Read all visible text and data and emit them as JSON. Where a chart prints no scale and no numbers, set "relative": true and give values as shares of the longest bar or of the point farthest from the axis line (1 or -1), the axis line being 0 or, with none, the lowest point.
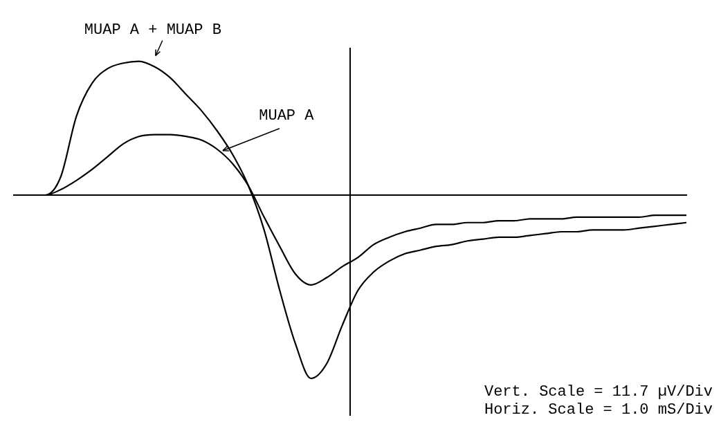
{
  "chart_data": {
    "type": "line",
    "relative": true,
    "grid": false,
    "legend": false,
    "marker": "none",
    "line_style": "solid",
    "categories": [
      null,
      null,
      null,
      null,
      null,
      null,
      null,
      null,
      null,
      null,
      null,
      null,
      null,
      null,
      null,
      null,
      null,
      null,
      null,
      null,
      null,
      null,
      null,
      null,
      null,
      null,
      null,
      null,
      null,
      null,
      null,
      null,
      null,
      null,
      null,
      null,
      null,
      null,
      null,
      null,
      null,
      null,
      null,
      null
    ],
    "series": [
      {
        "name": "MUAP A + MUAP B",
        "color": "#000000",
        "values": [
          0,
          0,
          0,
          0.1,
          0.43,
          0.61,
          0.69,
          0.72,
          0.73,
          0.7,
          0.64,
          0.55,
          0.46,
          0.35,
          0.22,
          0.05,
          -0.19,
          -0.52,
          -0.81,
          -1,
          -0.92,
          -0.71,
          -0.52,
          -0.42,
          -0.36,
          -0.32,
          -0.3,
          -0.28,
          -0.27,
          -0.25,
          -0.24,
          -0.23,
          -0.23,
          -0.22,
          -0.21,
          -0.2,
          -0.2,
          -0.19,
          -0.19,
          -0.19,
          -0.18,
          -0.17,
          -0.16,
          -0.15
        ]
      },
      {
        "name": "MUAP A",
        "color": "#000000",
        "values": [
          0,
          0,
          0,
          0.03,
          0.08,
          0.14,
          0.21,
          0.28,
          0.32,
          0.33,
          0.33,
          0.32,
          0.3,
          0.25,
          0.17,
          0.05,
          -0.12,
          -0.28,
          -0.43,
          -0.49,
          -0.45,
          -0.39,
          -0.34,
          -0.27,
          -0.23,
          -0.2,
          -0.18,
          -0.16,
          -0.16,
          -0.15,
          -0.15,
          -0.14,
          -0.14,
          -0.13,
          -0.13,
          -0.13,
          -0.12,
          -0.12,
          -0.12,
          -0.12,
          -0.12,
          -0.11,
          -0.11,
          -0.11
        ]
      }
    ],
    "annotations": [
      "Vert. Scale = 11.7 µV/Div",
      "Horiz. Scale = 1.0 mS/Div"
    ]
  }
}
